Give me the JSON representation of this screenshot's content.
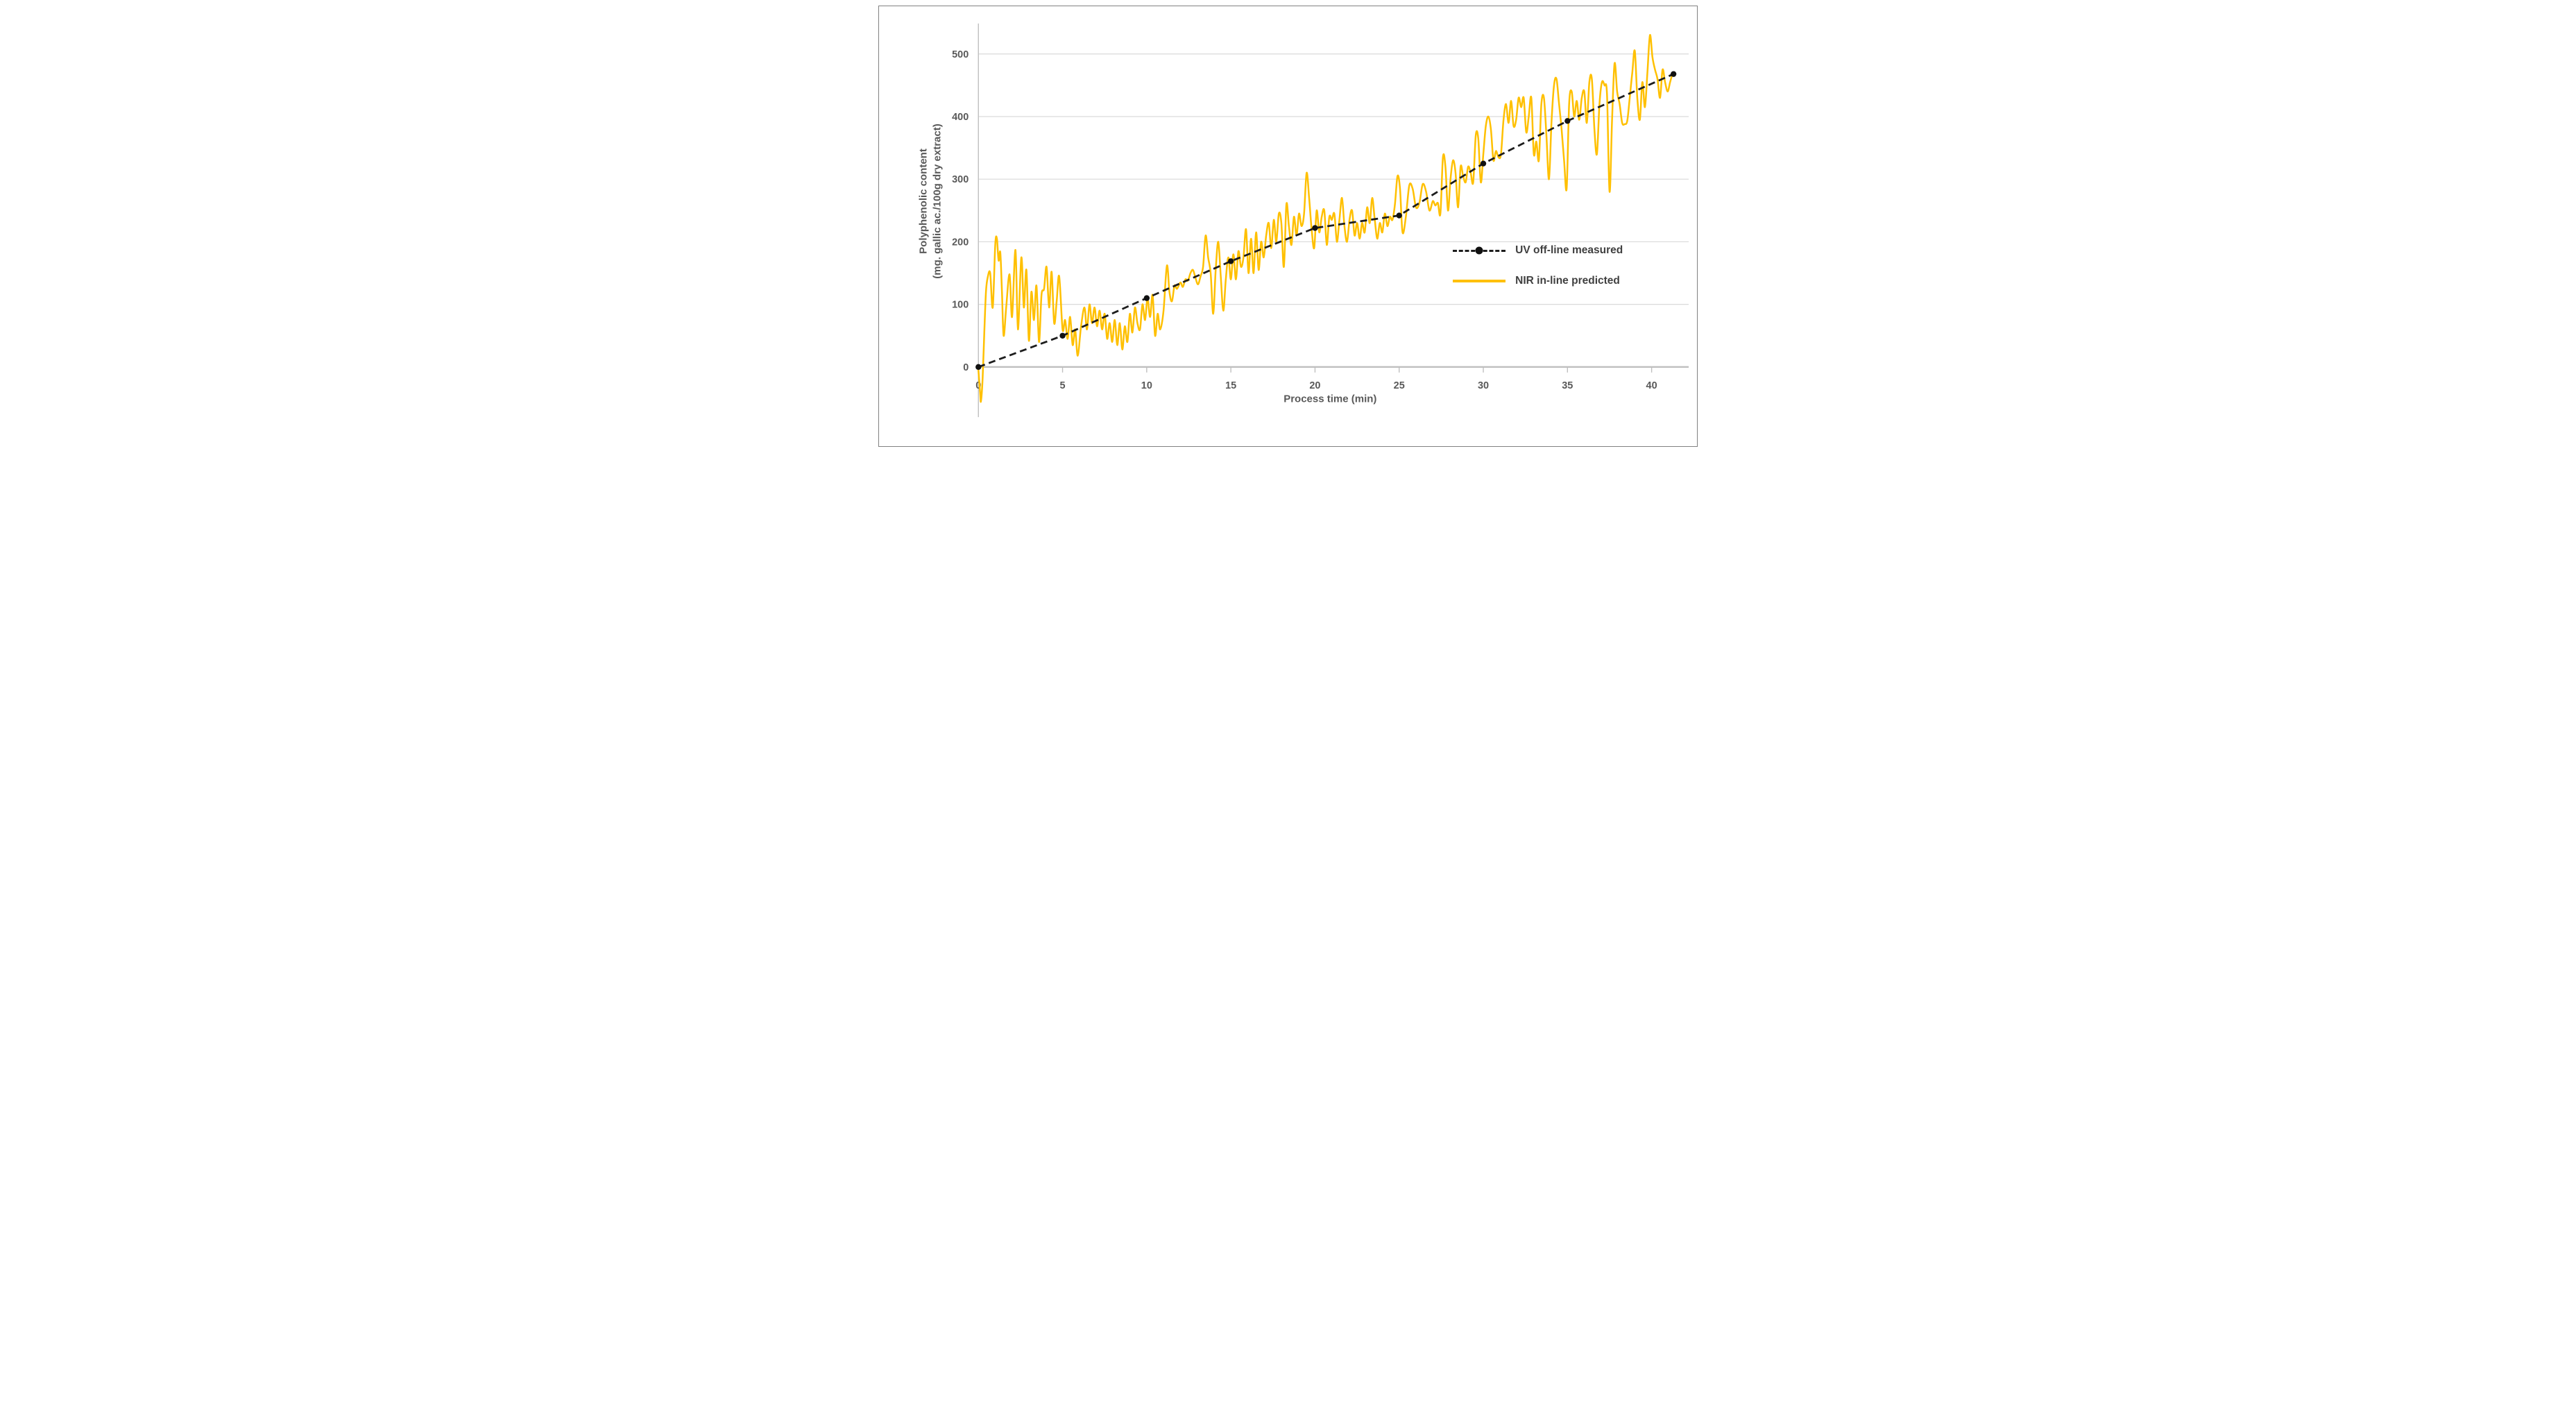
{
  "figure": {
    "background_color": "#ffffff",
    "border_color": "#818181"
  },
  "chart_data": {
    "type": "line",
    "title": "",
    "xlabel": "Process time (min)",
    "ylabel_line1": "Polyphenolic content",
    "ylabel_line2": "(mg. gallic ac./100g dry extract)",
    "xlim": [
      0,
      42.3
    ],
    "ylim": [
      -75,
      545
    ],
    "xticks": [
      0,
      5,
      10,
      15,
      20,
      25,
      30,
      35,
      40
    ],
    "yticks": [
      0,
      100,
      200,
      300,
      400,
      500
    ],
    "grid": "horizontal",
    "gridline_color": "#d9d9d9",
    "axis_line_color": "#bfbfbf",
    "tick_label_color": "#595959",
    "legend_position": "middle-right",
    "series": [
      {
        "name": "UV off-line measured",
        "style": "dashed-with-markers",
        "color": "#1d1d1d",
        "marker_color": "#111111",
        "points": [
          [
            0,
            0
          ],
          [
            5,
            50
          ],
          [
            10,
            110
          ],
          [
            15,
            169
          ],
          [
            20,
            222
          ],
          [
            25,
            242
          ],
          [
            30,
            325
          ],
          [
            35,
            393
          ],
          [
            41.3,
            468
          ]
        ]
      },
      {
        "name": "NIR in-line predicted",
        "style": "solid",
        "color": "#FFC000",
        "points": [
          [
            0,
            -5
          ],
          [
            0.1,
            -40
          ],
          [
            0.15,
            -55
          ],
          [
            0.25,
            -18
          ],
          [
            0.35,
            55
          ],
          [
            0.45,
            120
          ],
          [
            0.55,
            143
          ],
          [
            0.7,
            150
          ],
          [
            0.85,
            95
          ],
          [
            1,
            195
          ],
          [
            1.1,
            205
          ],
          [
            1.2,
            170
          ],
          [
            1.3,
            183
          ],
          [
            1.4,
            120
          ],
          [
            1.5,
            50
          ],
          [
            1.65,
            95
          ],
          [
            1.85,
            148
          ],
          [
            2,
            80
          ],
          [
            2.2,
            187
          ],
          [
            2.35,
            60
          ],
          [
            2.55,
            175
          ],
          [
            2.7,
            95
          ],
          [
            2.85,
            155
          ],
          [
            3,
            42
          ],
          [
            3.15,
            120
          ],
          [
            3.3,
            75
          ],
          [
            3.45,
            130
          ],
          [
            3.6,
            40
          ],
          [
            3.75,
            115
          ],
          [
            3.9,
            125
          ],
          [
            4.05,
            160
          ],
          [
            4.2,
            95
          ],
          [
            4.35,
            152
          ],
          [
            4.5,
            70
          ],
          [
            4.65,
            105
          ],
          [
            4.8,
            145
          ],
          [
            5,
            60
          ],
          [
            5.15,
            75
          ],
          [
            5.3,
            45
          ],
          [
            5.45,
            80
          ],
          [
            5.6,
            35
          ],
          [
            5.75,
            60
          ],
          [
            5.9,
            18
          ],
          [
            6.1,
            65
          ],
          [
            6.3,
            95
          ],
          [
            6.45,
            60
          ],
          [
            6.6,
            100
          ],
          [
            6.75,
            70
          ],
          [
            6.9,
            95
          ],
          [
            7.05,
            65
          ],
          [
            7.2,
            90
          ],
          [
            7.35,
            60
          ],
          [
            7.5,
            85
          ],
          [
            7.65,
            45
          ],
          [
            7.8,
            70
          ],
          [
            7.95,
            40
          ],
          [
            8.1,
            75
          ],
          [
            8.25,
            35
          ],
          [
            8.4,
            70
          ],
          [
            8.55,
            28
          ],
          [
            8.7,
            65
          ],
          [
            8.85,
            40
          ],
          [
            9,
            85
          ],
          [
            9.15,
            55
          ],
          [
            9.3,
            95
          ],
          [
            9.45,
            70
          ],
          [
            9.6,
            60
          ],
          [
            9.75,
            100
          ],
          [
            9.9,
            75
          ],
          [
            10.05,
            110
          ],
          [
            10.2,
            80
          ],
          [
            10.35,
            115
          ],
          [
            10.5,
            50
          ],
          [
            10.65,
            85
          ],
          [
            10.8,
            60
          ],
          [
            11,
            90
          ],
          [
            11.2,
            162
          ],
          [
            11.35,
            120
          ],
          [
            11.5,
            105
          ],
          [
            11.65,
            130
          ],
          [
            11.8,
            125
          ],
          [
            12,
            135
          ],
          [
            12.15,
            128
          ],
          [
            12.3,
            140
          ],
          [
            12.45,
            138
          ],
          [
            12.6,
            150
          ],
          [
            12.75,
            155
          ],
          [
            12.9,
            142
          ],
          [
            13.05,
            132
          ],
          [
            13.2,
            145
          ],
          [
            13.35,
            160
          ],
          [
            13.5,
            210
          ],
          [
            13.65,
            175
          ],
          [
            13.8,
            150
          ],
          [
            13.95,
            85
          ],
          [
            14.1,
            155
          ],
          [
            14.25,
            200
          ],
          [
            14.4,
            145
          ],
          [
            14.55,
            90
          ],
          [
            14.7,
            140
          ],
          [
            14.85,
            175
          ],
          [
            15,
            140
          ],
          [
            15.15,
            180
          ],
          [
            15.3,
            140
          ],
          [
            15.45,
            185
          ],
          [
            15.6,
            160
          ],
          [
            15.75,
            175
          ],
          [
            15.9,
            220
          ],
          [
            16.05,
            150
          ],
          [
            16.2,
            205
          ],
          [
            16.35,
            150
          ],
          [
            16.5,
            215
          ],
          [
            16.65,
            155
          ],
          [
            16.8,
            200
          ],
          [
            16.95,
            175
          ],
          [
            17.1,
            210
          ],
          [
            17.25,
            230
          ],
          [
            17.4,
            190
          ],
          [
            17.55,
            235
          ],
          [
            17.7,
            200
          ],
          [
            17.85,
            245
          ],
          [
            18,
            230
          ],
          [
            18.15,
            160
          ],
          [
            18.3,
            260
          ],
          [
            18.45,
            225
          ],
          [
            18.6,
            195
          ],
          [
            18.75,
            240
          ],
          [
            18.9,
            210
          ],
          [
            19.05,
            245
          ],
          [
            19.2,
            225
          ],
          [
            19.35,
            245
          ],
          [
            19.5,
            310
          ],
          [
            19.65,
            270
          ],
          [
            19.8,
            220
          ],
          [
            19.95,
            190
          ],
          [
            20.1,
            250
          ],
          [
            20.25,
            215
          ],
          [
            20.4,
            240
          ],
          [
            20.55,
            250
          ],
          [
            20.7,
            195
          ],
          [
            20.85,
            240
          ],
          [
            21,
            235
          ],
          [
            21.15,
            245
          ],
          [
            21.3,
            200
          ],
          [
            21.45,
            235
          ],
          [
            21.6,
            270
          ],
          [
            21.75,
            225
          ],
          [
            21.9,
            200
          ],
          [
            22.05,
            235
          ],
          [
            22.2,
            250
          ],
          [
            22.35,
            210
          ],
          [
            22.5,
            230
          ],
          [
            22.65,
            205
          ],
          [
            22.8,
            230
          ],
          [
            22.95,
            215
          ],
          [
            23.1,
            255
          ],
          [
            23.25,
            230
          ],
          [
            23.4,
            270
          ],
          [
            23.55,
            235
          ],
          [
            23.7,
            205
          ],
          [
            23.85,
            230
          ],
          [
            24,
            215
          ],
          [
            24.15,
            245
          ],
          [
            24.3,
            225
          ],
          [
            24.45,
            240
          ],
          [
            24.6,
            235
          ],
          [
            24.75,
            260
          ],
          [
            24.9,
            305
          ],
          [
            25.05,
            285
          ],
          [
            25.2,
            215
          ],
          [
            25.4,
            240
          ],
          [
            25.6,
            290
          ],
          [
            25.8,
            285
          ],
          [
            26,
            255
          ],
          [
            26.2,
            262
          ],
          [
            26.4,
            292
          ],
          [
            26.6,
            280
          ],
          [
            26.8,
            250
          ],
          [
            27,
            265
          ],
          [
            27.15,
            258
          ],
          [
            27.3,
            262
          ],
          [
            27.45,
            245
          ],
          [
            27.6,
            335
          ],
          [
            27.75,
            320
          ],
          [
            27.9,
            250
          ],
          [
            28.05,
            300
          ],
          [
            28.2,
            330
          ],
          [
            28.35,
            310
          ],
          [
            28.5,
            255
          ],
          [
            28.65,
            320
          ],
          [
            28.8,
            305
          ],
          [
            28.95,
            295
          ],
          [
            29.1,
            320
          ],
          [
            29.25,
            310
          ],
          [
            29.4,
            295
          ],
          [
            29.55,
            370
          ],
          [
            29.7,
            365
          ],
          [
            29.85,
            295
          ],
          [
            30,
            340
          ],
          [
            30.15,
            385
          ],
          [
            30.3,
            400
          ],
          [
            30.45,
            380
          ],
          [
            30.6,
            330
          ],
          [
            30.75,
            345
          ],
          [
            30.9,
            335
          ],
          [
            31.05,
            340
          ],
          [
            31.2,
            395
          ],
          [
            31.35,
            420
          ],
          [
            31.5,
            390
          ],
          [
            31.65,
            425
          ],
          [
            31.8,
            385
          ],
          [
            31.95,
            395
          ],
          [
            32.1,
            430
          ],
          [
            32.25,
            415
          ],
          [
            32.4,
            430
          ],
          [
            32.55,
            375
          ],
          [
            32.7,
            400
          ],
          [
            32.85,
            430
          ],
          [
            33,
            340
          ],
          [
            33.15,
            360
          ],
          [
            33.3,
            330
          ],
          [
            33.45,
            420
          ],
          [
            33.6,
            430
          ],
          [
            33.75,
            370
          ],
          [
            33.9,
            300
          ],
          [
            34.05,
            390
          ],
          [
            34.2,
            450
          ],
          [
            34.35,
            460
          ],
          [
            34.5,
            420
          ],
          [
            34.65,
            380
          ],
          [
            34.8,
            330
          ],
          [
            34.95,
            285
          ],
          [
            35.1,
            420
          ],
          [
            35.25,
            440
          ],
          [
            35.4,
            400
          ],
          [
            35.55,
            425
          ],
          [
            35.7,
            395
          ],
          [
            35.85,
            430
          ],
          [
            36,
            440
          ],
          [
            36.15,
            390
          ],
          [
            36.3,
            455
          ],
          [
            36.45,
            460
          ],
          [
            36.6,
            380
          ],
          [
            36.75,
            340
          ],
          [
            36.9,
            420
          ],
          [
            37.05,
            455
          ],
          [
            37.2,
            450
          ],
          [
            37.35,
            435
          ],
          [
            37.5,
            280
          ],
          [
            37.65,
            395
          ],
          [
            37.8,
            485
          ],
          [
            37.95,
            440
          ],
          [
            38.1,
            420
          ],
          [
            38.25,
            390
          ],
          [
            38.4,
            388
          ],
          [
            38.55,
            393
          ],
          [
            38.7,
            430
          ],
          [
            38.85,
            470
          ],
          [
            39,
            505
          ],
          [
            39.15,
            430
          ],
          [
            39.3,
            395
          ],
          [
            39.45,
            455
          ],
          [
            39.6,
            415
          ],
          [
            39.75,
            470
          ],
          [
            39.9,
            530
          ],
          [
            40.05,
            495
          ],
          [
            40.2,
            475
          ],
          [
            40.35,
            460
          ],
          [
            40.5,
            430
          ],
          [
            40.65,
            475
          ],
          [
            40.8,
            455
          ],
          [
            40.95,
            440
          ],
          [
            41.1,
            455
          ],
          [
            41.25,
            470
          ]
        ]
      }
    ]
  }
}
